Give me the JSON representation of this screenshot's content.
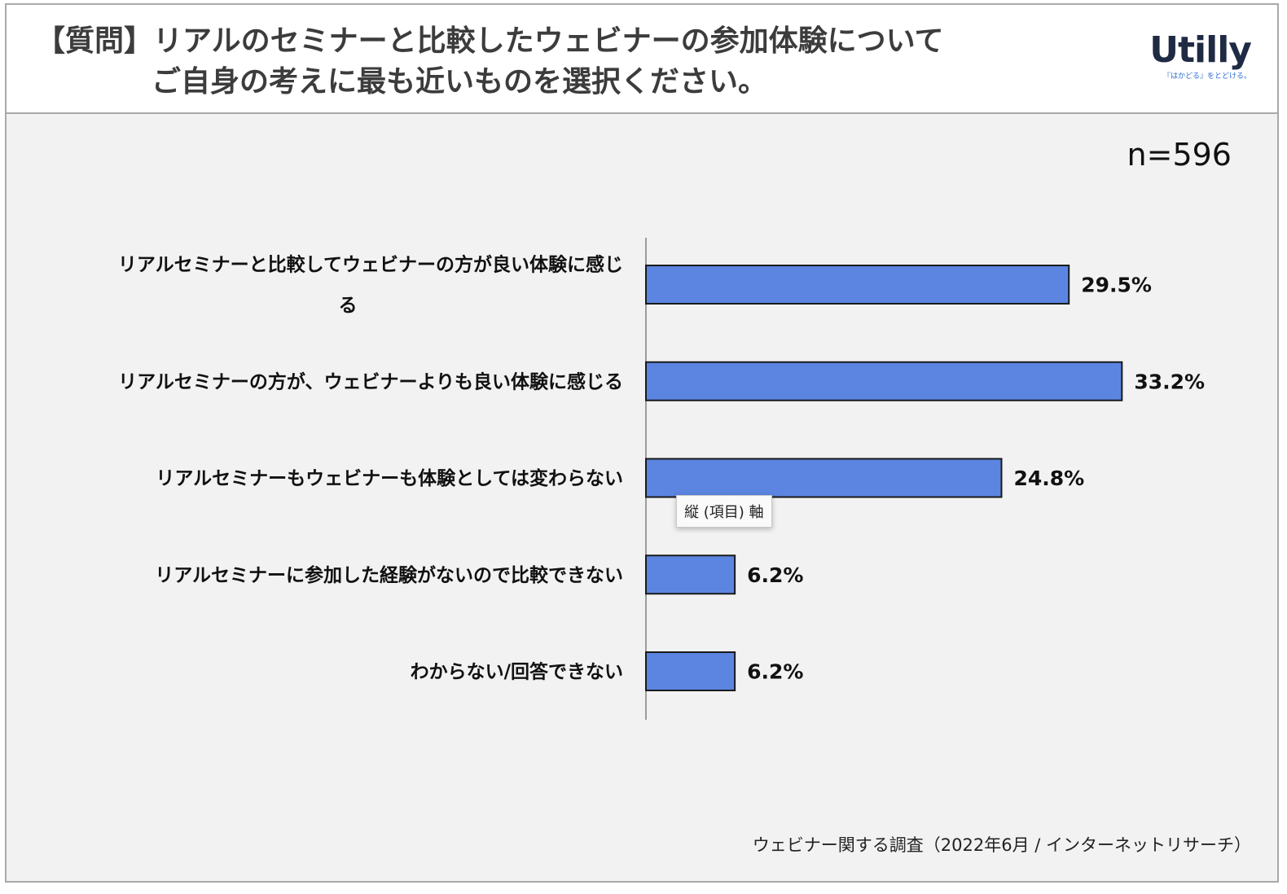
{
  "header": {
    "question_line1": "【質問】リアルのセミナーと比較したウェビナーの参加体験について",
    "question_line2": "ご自身の考えに最も近いものを選択ください。",
    "logo_text": "Utilly",
    "logo_tagline": "『はかどる』をとどける。"
  },
  "sample_size": "n=596",
  "tooltip": "縦 (項目) 軸",
  "source": "ウェビナー関する調査（2022年6月 / インターネットリサーチ）",
  "colors": {
    "bar": "#5b85e0",
    "bar_border": "#1a1a1a",
    "axis": "#444444",
    "background": "#f2f2f2"
  },
  "chart_data": {
    "type": "bar",
    "orientation": "horizontal",
    "categories": [
      [
        "リアルセミナーと比較してウェビナーの方が良い体験に感じ",
        "る"
      ],
      [
        "リアルセミナーの方が、ウェビナーよりも良い体験に感じる"
      ],
      [
        "リアルセミナーもウェビナーも体験としては変わらない"
      ],
      [
        "リアルセミナーに参加した経験がないので比較できない"
      ],
      [
        "わからない/回答できない"
      ]
    ],
    "values": [
      29.5,
      33.2,
      24.8,
      6.2,
      6.2
    ],
    "value_labels": [
      "29.5%",
      "33.2%",
      "24.8%",
      "6.2%",
      "6.2%"
    ],
    "xlim": [
      0,
      40
    ],
    "grid": false,
    "legend": "none"
  }
}
